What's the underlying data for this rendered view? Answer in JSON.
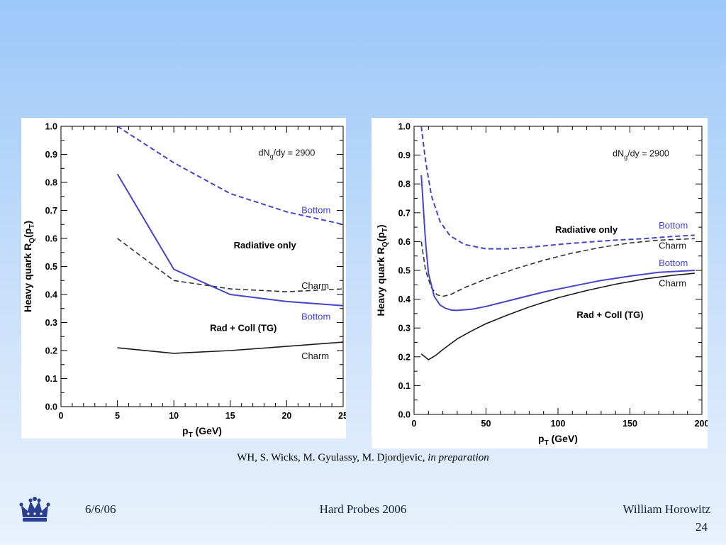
{
  "citation": {
    "authors": "WH, S. Wicks, M. Gyulassy, M. Djordjevic, ",
    "status": "in preparation"
  },
  "footer": {
    "date": "6/6/06",
    "conference": "Hard Probes 2006",
    "author": "William Horowitz",
    "page": "24"
  },
  "logo": {
    "icon": "crown-icon",
    "color": "#2a3f8f"
  },
  "colors": {
    "blue": "#4444cc",
    "black": "#1a1a1a",
    "dark_dashed": "#333333"
  },
  "chart_data": [
    {
      "type": "line",
      "ylabel_main": "Heavy quark R",
      "ylabel_sub": "Q",
      "ylabel_tail": "(p",
      "ylabel_sub2": "T",
      "ylabel_end": ")",
      "xlabel_main": "p",
      "xlabel_sub": "T",
      "xlabel_tail": " (GeV)",
      "xlim": [
        0,
        25
      ],
      "ylim": [
        0,
        1
      ],
      "xticks": [
        "0",
        "5",
        "10",
        "15",
        "20",
        "25"
      ],
      "yticks": [
        "0.0",
        "0.1",
        "0.2",
        "0.3",
        "0.4",
        "0.5",
        "0.6",
        "0.7",
        "0.8",
        "0.9",
        "1.0"
      ],
      "xtick_values": [
        0,
        5,
        10,
        15,
        20,
        25
      ],
      "ytick_values": [
        0,
        0.1,
        0.2,
        0.3,
        0.4,
        0.5,
        0.6,
        0.7,
        0.8,
        0.9,
        1.0
      ],
      "series": [
        {
          "name": "Bottom",
          "group": "Radiative only",
          "color": "#4444cc",
          "dashed": true,
          "x": [
            5,
            10,
            15,
            20,
            25
          ],
          "y": [
            1.0,
            0.87,
            0.76,
            0.695,
            0.65
          ]
        },
        {
          "name": "Charm",
          "group": "Radiative only",
          "color": "#333333",
          "dashed": true,
          "x": [
            5,
            10,
            15,
            20,
            25
          ],
          "y": [
            0.6,
            0.45,
            0.42,
            0.41,
            0.42
          ]
        },
        {
          "name": "Bottom",
          "group": "Rad + Coll (TG)",
          "color": "#4444cc",
          "dashed": false,
          "x": [
            5,
            10,
            15,
            20,
            25
          ],
          "y": [
            0.83,
            0.49,
            0.4,
            0.375,
            0.36
          ]
        },
        {
          "name": "Charm",
          "group": "Rad + Coll (TG)",
          "color": "#1a1a1a",
          "dashed": false,
          "x": [
            5,
            10,
            15,
            20,
            25
          ],
          "y": [
            0.21,
            0.19,
            0.2,
            0.215,
            0.23
          ]
        }
      ],
      "annotations": [
        {
          "text": "dN",
          "sub": "g",
          "tail": "/dy = 2900",
          "x": 17.5,
          "y": 0.895,
          "color": "#1a1a1a",
          "size": 12.5
        },
        {
          "text": "Bottom",
          "x": 21.3,
          "y": 0.69,
          "color": "#4444cc",
          "size": 13
        },
        {
          "text": "Radiative only",
          "x": 15.3,
          "y": 0.565,
          "color": "#000000",
          "size": 13,
          "bold": true
        },
        {
          "text": "Charm",
          "x": 21.3,
          "y": 0.42,
          "color": "#1a1a1a",
          "size": 13
        },
        {
          "text": "Bottom",
          "x": 21.3,
          "y": 0.31,
          "color": "#4444cc",
          "size": 13
        },
        {
          "text": "Rad + Coll (TG)",
          "x": 13.2,
          "y": 0.27,
          "color": "#000000",
          "size": 13,
          "bold": true
        },
        {
          "text": "Charm",
          "x": 21.3,
          "y": 0.17,
          "color": "#1a1a1a",
          "size": 13
        }
      ]
    },
    {
      "type": "line",
      "ylabel_main": "Heavy quark R",
      "ylabel_sub": "Q",
      "ylabel_tail": "(p",
      "ylabel_sub2": "T",
      "ylabel_end": ")",
      "xlabel_main": "p",
      "xlabel_sub": "T",
      "xlabel_tail": " (GeV)",
      "xlim": [
        0,
        200
      ],
      "ylim": [
        0,
        1
      ],
      "xticks": [
        "0",
        "50",
        "100",
        "150",
        "200"
      ],
      "yticks": [
        "0.0",
        "0.1",
        "0.2",
        "0.3",
        "0.4",
        "0.5",
        "0.6",
        "0.7",
        "0.8",
        "0.9",
        "1.0"
      ],
      "xtick_values": [
        0,
        50,
        100,
        150,
        200
      ],
      "ytick_values": [
        0,
        0.1,
        0.2,
        0.3,
        0.4,
        0.5,
        0.6,
        0.7,
        0.8,
        0.9,
        1.0
      ],
      "series": [
        {
          "name": "Bottom",
          "group": "Radiative only",
          "color": "#4444cc",
          "dashed": true,
          "x": [
            5,
            8,
            12,
            18,
            25,
            35,
            50,
            65,
            80,
            100,
            120,
            140,
            160,
            180,
            195
          ],
          "y": [
            1.0,
            0.88,
            0.76,
            0.67,
            0.62,
            0.59,
            0.575,
            0.575,
            0.58,
            0.59,
            0.598,
            0.605,
            0.61,
            0.618,
            0.622
          ]
        },
        {
          "name": "Charm",
          "group": "Radiative only",
          "color": "#333333",
          "dashed": true,
          "x": [
            5,
            8,
            12,
            16,
            20,
            25,
            35,
            50,
            70,
            90,
            110,
            130,
            150,
            170,
            195
          ],
          "y": [
            0.6,
            0.5,
            0.44,
            0.415,
            0.41,
            0.415,
            0.44,
            0.47,
            0.505,
            0.535,
            0.56,
            0.58,
            0.595,
            0.605,
            0.61
          ]
        },
        {
          "name": "Bottom",
          "group": "Rad + Coll (TG)",
          "color": "#4444cc",
          "dashed": false,
          "x": [
            5,
            8,
            10,
            14,
            18,
            22,
            26,
            30,
            40,
            50,
            70,
            90,
            110,
            130,
            150,
            170,
            195
          ],
          "y": [
            0.83,
            0.6,
            0.49,
            0.41,
            0.38,
            0.368,
            0.362,
            0.361,
            0.365,
            0.375,
            0.4,
            0.425,
            0.445,
            0.465,
            0.48,
            0.493,
            0.5
          ]
        },
        {
          "name": "Charm",
          "group": "Rad + Coll (TG)",
          "color": "#1a1a1a",
          "dashed": false,
          "x": [
            5,
            10,
            15,
            20,
            30,
            40,
            50,
            65,
            80,
            100,
            120,
            140,
            160,
            180,
            195
          ],
          "y": [
            0.21,
            0.19,
            0.205,
            0.225,
            0.262,
            0.29,
            0.315,
            0.345,
            0.373,
            0.405,
            0.43,
            0.452,
            0.47,
            0.483,
            0.49
          ]
        }
      ],
      "annotations": [
        {
          "text": "dN",
          "sub": "g",
          "tail": "/dy = 2900",
          "x": 138,
          "y": 0.895,
          "color": "#1a1a1a",
          "size": 12.5
        },
        {
          "text": "Radiative only",
          "x": 98,
          "y": 0.63,
          "color": "#000000",
          "size": 13,
          "bold": true
        },
        {
          "text": "Bottom",
          "x": 170,
          "y": 0.645,
          "color": "#4444cc",
          "size": 13
        },
        {
          "text": "Charm",
          "x": 170,
          "y": 0.575,
          "color": "#1a1a1a",
          "size": 13
        },
        {
          "text": "Bottom",
          "x": 170,
          "y": 0.515,
          "color": "#4444cc",
          "size": 13
        },
        {
          "text": "Charm",
          "x": 170,
          "y": 0.445,
          "color": "#1a1a1a",
          "size": 13
        },
        {
          "text": "Rad + Coll (TG)",
          "x": 113,
          "y": 0.335,
          "color": "#000000",
          "size": 13,
          "bold": true
        }
      ]
    }
  ]
}
